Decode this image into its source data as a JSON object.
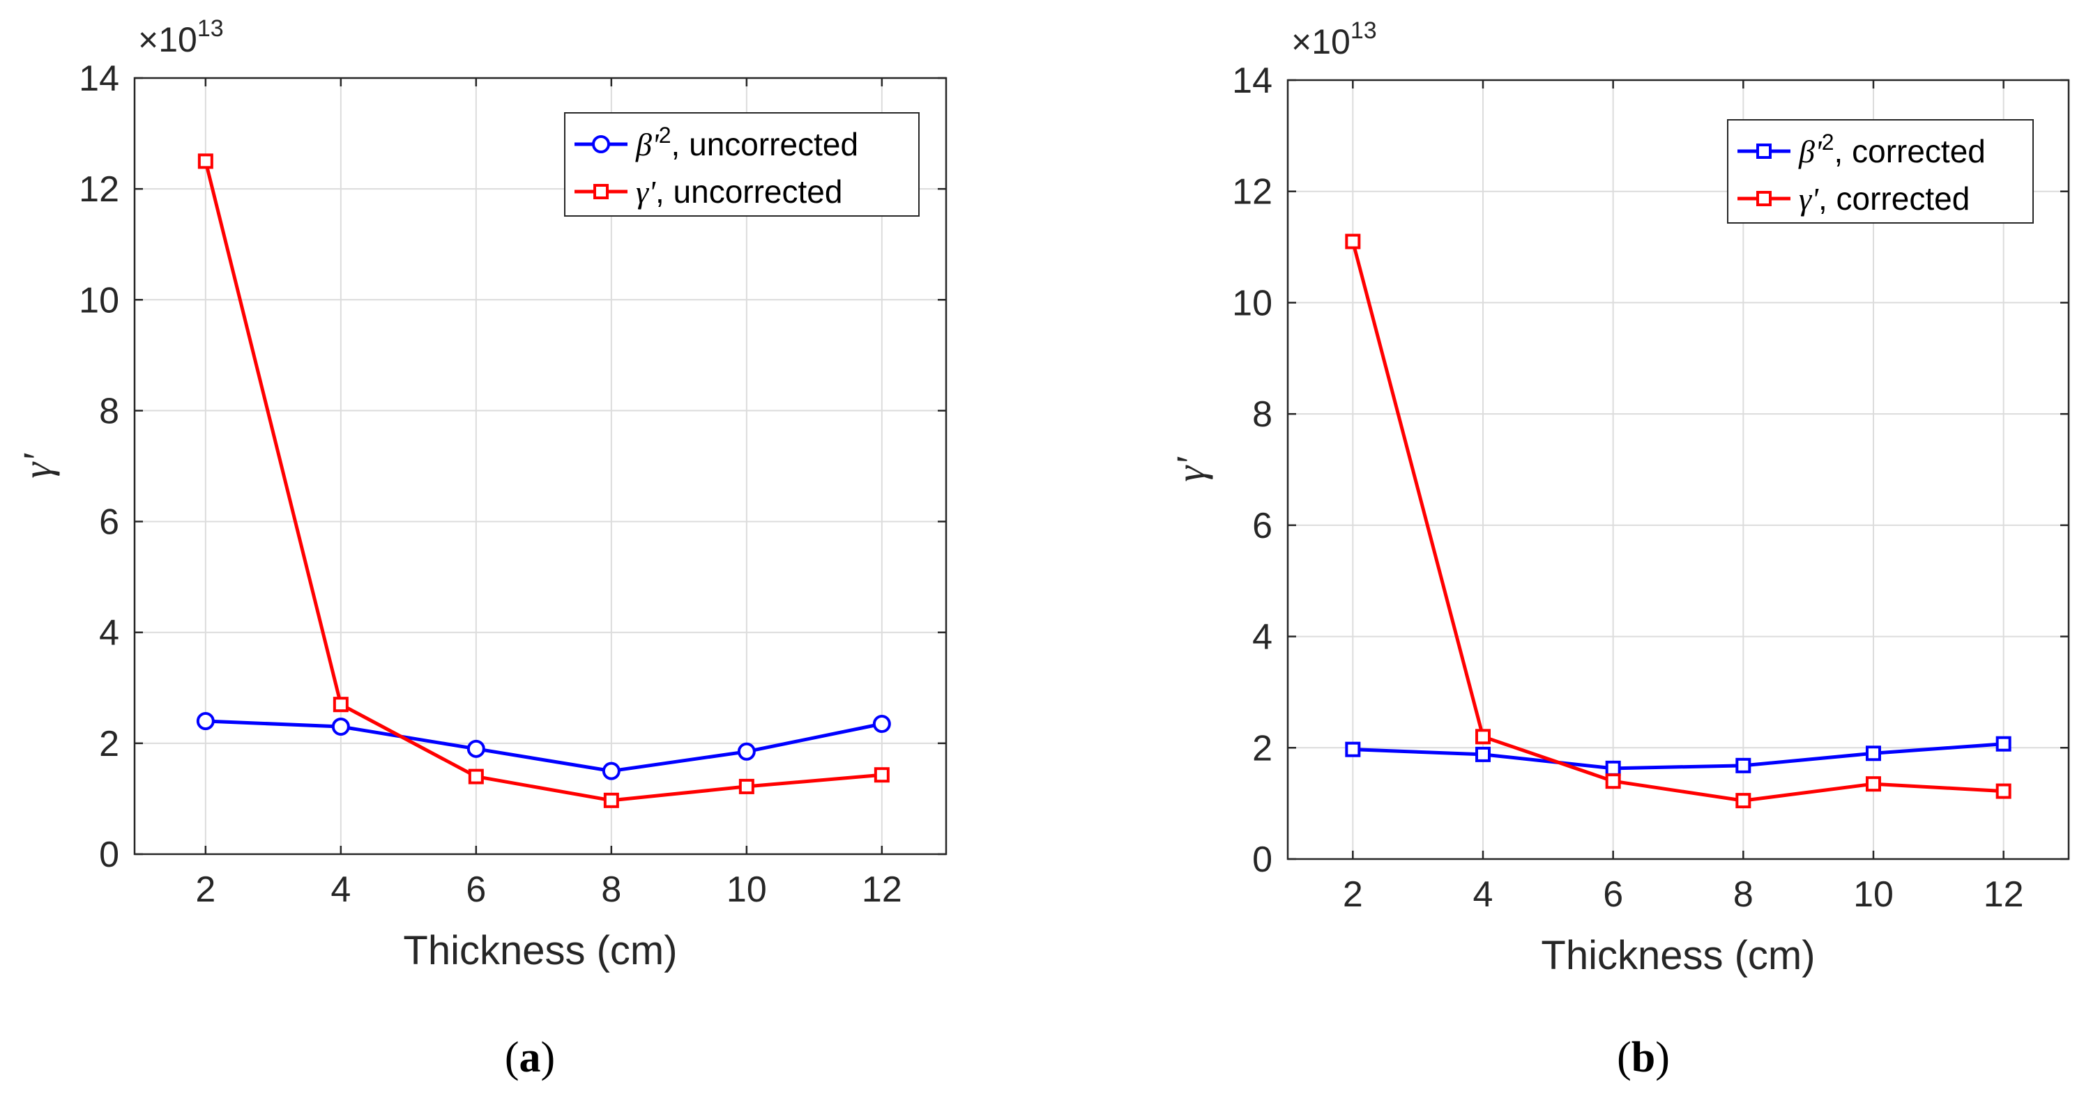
{
  "colors": {
    "series_blue": "#0000ff",
    "series_red": "#ff0000",
    "grid": "#dcdcdc",
    "axis": "#262626"
  },
  "captions": {
    "a_open": "(",
    "a_letter": "a",
    "a_close": ")",
    "b_open": "(",
    "b_letter": "b",
    "b_close": ")"
  },
  "chart_data": [
    {
      "type": "line",
      "panel": "a",
      "xlabel": "Thickness (cm)",
      "ylabel": "γ'",
      "exponent_label": "×10",
      "exponent_power": "13",
      "x": [
        2,
        4,
        6,
        8,
        10,
        12
      ],
      "xlim": [
        0.95,
        12.95
      ],
      "ylim": [
        0,
        14
      ],
      "x_ticks": [
        "2",
        "4",
        "6",
        "8",
        "10",
        "12"
      ],
      "y_ticks": [
        "0",
        "2",
        "4",
        "6",
        "8",
        "10",
        "12",
        "14"
      ],
      "grid": true,
      "legend_position": "top-right",
      "series": [
        {
          "symbol": "β'",
          "sup": "2",
          "suffix": ", uncorrected",
          "color": "#0000ff",
          "marker": "circle",
          "values": [
            2.4,
            2.3,
            1.9,
            1.5,
            1.85,
            2.35
          ]
        },
        {
          "symbol": "γ'",
          "sup": "",
          "suffix": ", uncorrected",
          "color": "#ff0000",
          "marker": "square",
          "values": [
            12.5,
            2.7,
            1.4,
            0.97,
            1.22,
            1.43
          ]
        }
      ]
    },
    {
      "type": "line",
      "panel": "b",
      "xlabel": "Thickness (cm)",
      "ylabel": "γ'",
      "exponent_label": "×10",
      "exponent_power": "13",
      "x": [
        2,
        4,
        6,
        8,
        10,
        12
      ],
      "xlim": [
        1.0,
        13.0
      ],
      "ylim": [
        0,
        14
      ],
      "x_ticks": [
        "2",
        "4",
        "6",
        "8",
        "10",
        "12"
      ],
      "y_ticks": [
        "0",
        "2",
        "4",
        "6",
        "8",
        "10",
        "12",
        "14"
      ],
      "grid": true,
      "legend_position": "top-right",
      "series": [
        {
          "symbol": "β'",
          "sup": "2",
          "suffix": ", corrected",
          "color": "#0000ff",
          "marker": "square",
          "values": [
            1.97,
            1.88,
            1.63,
            1.68,
            1.9,
            2.07
          ]
        },
        {
          "symbol": "γ'",
          "sup": "",
          "suffix": ", corrected",
          "color": "#ff0000",
          "marker": "square",
          "values": [
            11.1,
            2.2,
            1.4,
            1.05,
            1.35,
            1.22
          ]
        }
      ]
    }
  ]
}
